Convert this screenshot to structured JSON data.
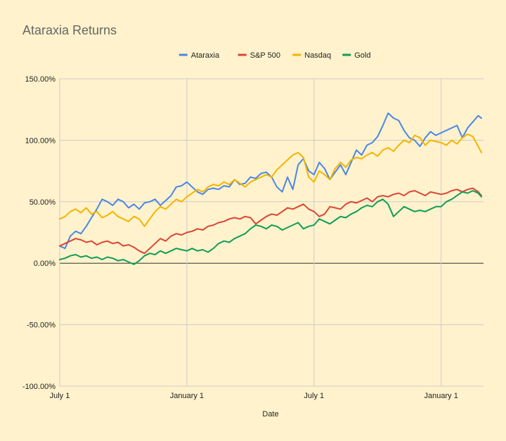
{
  "chart_data": {
    "type": "line",
    "title": "Ataraxia Returns",
    "xlabel": "Date",
    "ylabel": "",
    "ylim": [
      -1.0,
      1.5
    ],
    "y_ticks": [
      "150.00%",
      "100.00%",
      "50.00%",
      "0.00%",
      "-50.00%",
      "-100.00%"
    ],
    "y_tick_values": [
      1.5,
      1.0,
      0.5,
      0.0,
      -0.5,
      -1.0
    ],
    "x_ticks": [
      "July 1",
      "January 1",
      "July 1",
      "January 1"
    ],
    "x_tick_months": [
      0,
      6,
      12,
      18
    ],
    "xlim_months": [
      0,
      20
    ],
    "grid": true,
    "legend_position": "top",
    "series": [
      {
        "name": "Ataraxia",
        "color": "#4a86e8",
        "x_months": [
          0,
          0.25,
          0.5,
          0.75,
          1,
          1.25,
          1.5,
          1.75,
          2,
          2.25,
          2.5,
          2.75,
          3,
          3.25,
          3.5,
          3.75,
          4,
          4.25,
          4.5,
          4.75,
          5,
          5.25,
          5.5,
          5.75,
          6,
          6.25,
          6.5,
          6.75,
          7,
          7.25,
          7.5,
          7.75,
          8,
          8.25,
          8.5,
          8.75,
          9,
          9.25,
          9.5,
          9.75,
          10,
          10.25,
          10.5,
          10.75,
          11,
          11.25,
          11.5,
          11.75,
          12,
          12.25,
          12.5,
          12.75,
          13,
          13.25,
          13.5,
          13.75,
          14,
          14.25,
          14.5,
          14.75,
          15,
          15.25,
          15.5,
          15.75,
          16,
          16.25,
          16.5,
          16.75,
          17,
          17.25,
          17.5,
          17.75,
          18,
          18.25,
          18.5,
          18.75,
          19,
          19.25,
          19.5,
          19.75,
          19.9
        ],
        "values": [
          0.14,
          0.12,
          0.22,
          0.26,
          0.24,
          0.3,
          0.37,
          0.44,
          0.52,
          0.5,
          0.47,
          0.52,
          0.5,
          0.45,
          0.48,
          0.44,
          0.49,
          0.5,
          0.52,
          0.47,
          0.51,
          0.55,
          0.62,
          0.63,
          0.66,
          0.62,
          0.58,
          0.56,
          0.6,
          0.61,
          0.6,
          0.63,
          0.62,
          0.68,
          0.64,
          0.65,
          0.7,
          0.69,
          0.73,
          0.74,
          0.7,
          0.62,
          0.58,
          0.7,
          0.6,
          0.8,
          0.85,
          0.75,
          0.72,
          0.82,
          0.77,
          0.68,
          0.74,
          0.8,
          0.72,
          0.82,
          0.92,
          0.88,
          0.96,
          0.98,
          1.03,
          1.12,
          1.22,
          1.18,
          1.16,
          1.08,
          1.02,
          1.0,
          0.95,
          1.02,
          1.07,
          1.04,
          1.06,
          1.08,
          1.1,
          1.12,
          1.02,
          1.1,
          1.15,
          1.2,
          1.18
        ]
      },
      {
        "name": "S&P 500",
        "color": "#db4437",
        "x_months": [
          0,
          0.25,
          0.5,
          0.75,
          1,
          1.25,
          1.5,
          1.75,
          2,
          2.25,
          2.5,
          2.75,
          3,
          3.25,
          3.5,
          3.75,
          4,
          4.25,
          4.5,
          4.75,
          5,
          5.25,
          5.5,
          5.75,
          6,
          6.25,
          6.5,
          6.75,
          7,
          7.25,
          7.5,
          7.75,
          8,
          8.25,
          8.5,
          8.75,
          9,
          9.25,
          9.5,
          9.75,
          10,
          10.25,
          10.5,
          10.75,
          11,
          11.25,
          11.5,
          11.75,
          12,
          12.25,
          12.5,
          12.75,
          13,
          13.25,
          13.5,
          13.75,
          14,
          14.25,
          14.5,
          14.75,
          15,
          15.25,
          15.5,
          15.75,
          16,
          16.25,
          16.5,
          16.75,
          17,
          17.25,
          17.5,
          17.75,
          18,
          18.25,
          18.5,
          18.75,
          19,
          19.25,
          19.5,
          19.75,
          19.9
        ],
        "values": [
          0.14,
          0.16,
          0.18,
          0.2,
          0.19,
          0.17,
          0.18,
          0.15,
          0.17,
          0.18,
          0.16,
          0.17,
          0.14,
          0.15,
          0.13,
          0.1,
          0.08,
          0.12,
          0.16,
          0.2,
          0.18,
          0.22,
          0.24,
          0.23,
          0.25,
          0.26,
          0.28,
          0.27,
          0.3,
          0.31,
          0.33,
          0.34,
          0.36,
          0.37,
          0.36,
          0.38,
          0.37,
          0.32,
          0.35,
          0.38,
          0.4,
          0.39,
          0.42,
          0.45,
          0.44,
          0.46,
          0.48,
          0.44,
          0.42,
          0.38,
          0.4,
          0.46,
          0.45,
          0.44,
          0.48,
          0.5,
          0.49,
          0.51,
          0.53,
          0.5,
          0.54,
          0.55,
          0.54,
          0.56,
          0.57,
          0.55,
          0.58,
          0.59,
          0.57,
          0.55,
          0.58,
          0.57,
          0.56,
          0.57,
          0.59,
          0.6,
          0.58,
          0.6,
          0.61,
          0.58,
          0.55
        ]
      },
      {
        "name": "Nasdaq",
        "color": "#f4b400",
        "x_months": [
          0,
          0.25,
          0.5,
          0.75,
          1,
          1.25,
          1.5,
          1.75,
          2,
          2.25,
          2.5,
          2.75,
          3,
          3.25,
          3.5,
          3.75,
          4,
          4.25,
          4.5,
          4.75,
          5,
          5.25,
          5.5,
          5.75,
          6,
          6.25,
          6.5,
          6.75,
          7,
          7.25,
          7.5,
          7.75,
          8,
          8.25,
          8.5,
          8.75,
          9,
          9.25,
          9.5,
          9.75,
          10,
          10.25,
          10.5,
          10.75,
          11,
          11.25,
          11.5,
          11.75,
          12,
          12.25,
          12.5,
          12.75,
          13,
          13.25,
          13.5,
          13.75,
          14,
          14.25,
          14.5,
          14.75,
          15,
          15.25,
          15.5,
          15.75,
          16,
          16.25,
          16.5,
          16.75,
          17,
          17.25,
          17.5,
          17.75,
          18,
          18.25,
          18.5,
          18.75,
          19,
          19.25,
          19.5,
          19.75,
          19.9
        ],
        "values": [
          0.36,
          0.38,
          0.42,
          0.44,
          0.41,
          0.45,
          0.4,
          0.42,
          0.37,
          0.39,
          0.42,
          0.38,
          0.36,
          0.34,
          0.38,
          0.36,
          0.3,
          0.36,
          0.42,
          0.46,
          0.44,
          0.48,
          0.52,
          0.5,
          0.54,
          0.57,
          0.6,
          0.58,
          0.62,
          0.64,
          0.63,
          0.66,
          0.64,
          0.68,
          0.65,
          0.62,
          0.66,
          0.68,
          0.7,
          0.72,
          0.7,
          0.76,
          0.8,
          0.84,
          0.88,
          0.9,
          0.86,
          0.7,
          0.66,
          0.75,
          0.72,
          0.68,
          0.77,
          0.82,
          0.78,
          0.84,
          0.86,
          0.85,
          0.88,
          0.9,
          0.87,
          0.92,
          0.94,
          0.91,
          0.96,
          1.0,
          0.98,
          1.04,
          1.02,
          0.96,
          1.0,
          0.99,
          0.98,
          0.96,
          1.0,
          0.97,
          1.02,
          1.05,
          1.03,
          0.95,
          0.9
        ]
      },
      {
        "name": "Gold",
        "color": "#0f9d58",
        "x_months": [
          0,
          0.25,
          0.5,
          0.75,
          1,
          1.25,
          1.5,
          1.75,
          2,
          2.25,
          2.5,
          2.75,
          3,
          3.25,
          3.5,
          3.75,
          4,
          4.25,
          4.5,
          4.75,
          5,
          5.25,
          5.5,
          5.75,
          6,
          6.25,
          6.5,
          6.75,
          7,
          7.25,
          7.5,
          7.75,
          8,
          8.25,
          8.5,
          8.75,
          9,
          9.25,
          9.5,
          9.75,
          10,
          10.25,
          10.5,
          10.75,
          11,
          11.25,
          11.5,
          11.75,
          12,
          12.25,
          12.5,
          12.75,
          13,
          13.25,
          13.5,
          13.75,
          14,
          14.25,
          14.5,
          14.75,
          15,
          15.25,
          15.5,
          15.75,
          16,
          16.25,
          16.5,
          16.75,
          17,
          17.25,
          17.5,
          17.75,
          18,
          18.25,
          18.5,
          18.75,
          19,
          19.25,
          19.5,
          19.75,
          19.9
        ],
        "values": [
          0.03,
          0.04,
          0.06,
          0.07,
          0.05,
          0.06,
          0.04,
          0.05,
          0.03,
          0.05,
          0.04,
          0.02,
          0.03,
          0.01,
          -0.01,
          0.02,
          0.06,
          0.08,
          0.07,
          0.1,
          0.08,
          0.1,
          0.12,
          0.11,
          0.1,
          0.12,
          0.1,
          0.11,
          0.09,
          0.12,
          0.16,
          0.18,
          0.17,
          0.2,
          0.22,
          0.24,
          0.28,
          0.31,
          0.3,
          0.28,
          0.31,
          0.3,
          0.27,
          0.29,
          0.31,
          0.33,
          0.28,
          0.3,
          0.31,
          0.36,
          0.34,
          0.32,
          0.35,
          0.38,
          0.37,
          0.4,
          0.42,
          0.45,
          0.47,
          0.46,
          0.5,
          0.52,
          0.48,
          0.38,
          0.42,
          0.46,
          0.44,
          0.42,
          0.43,
          0.42,
          0.44,
          0.46,
          0.46,
          0.5,
          0.52,
          0.55,
          0.58,
          0.57,
          0.59,
          0.57,
          0.54
        ]
      }
    ]
  }
}
